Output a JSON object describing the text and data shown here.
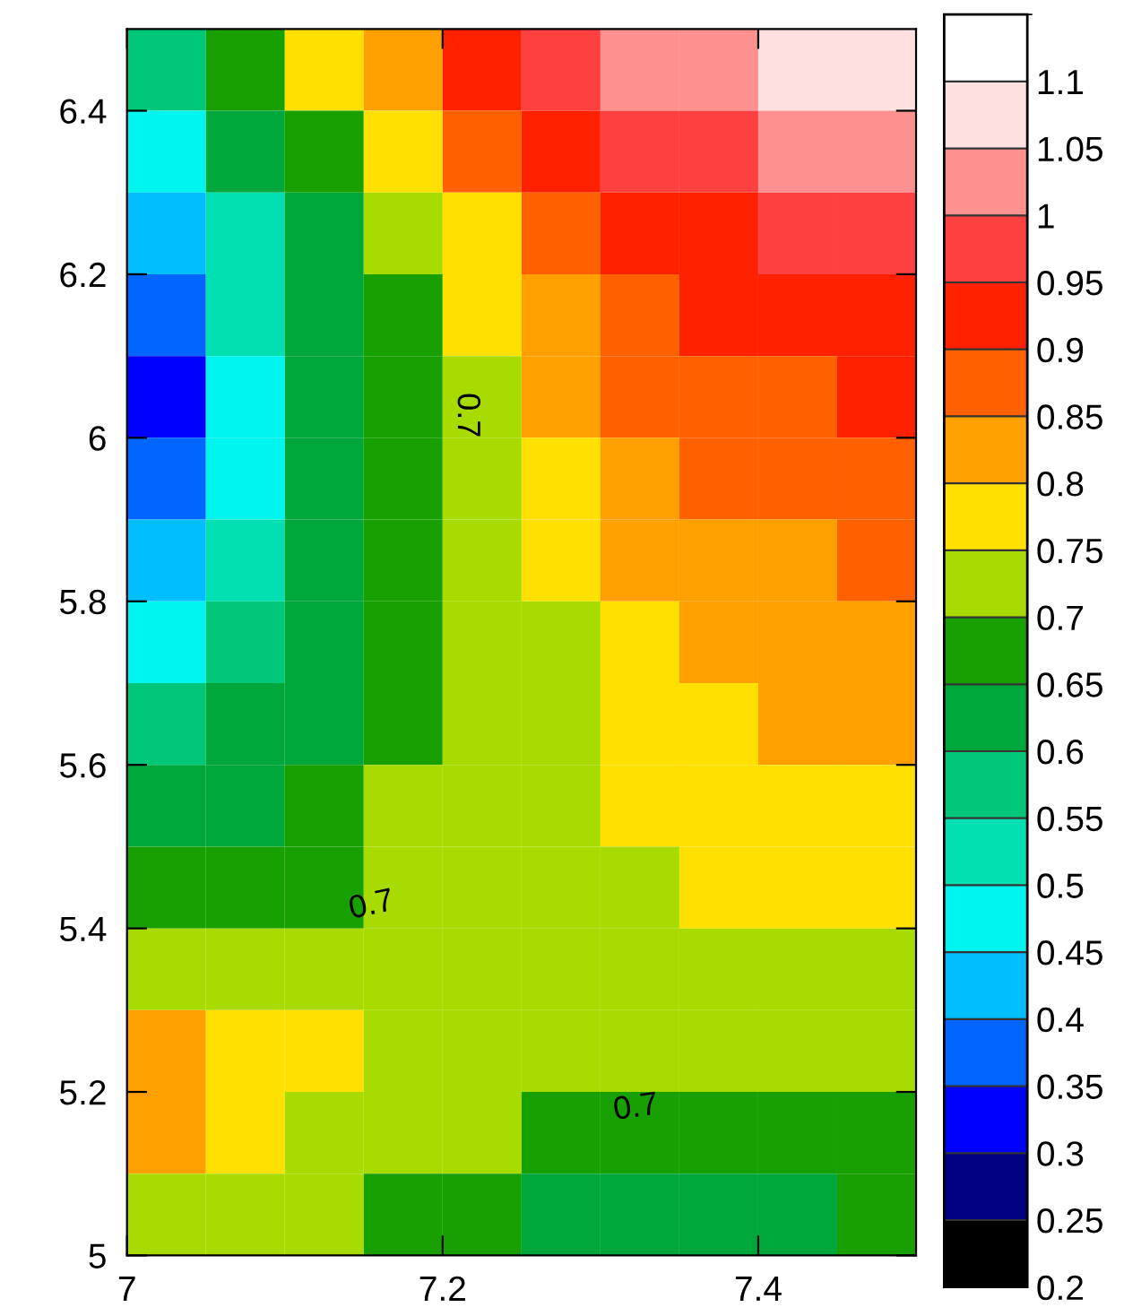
{
  "chart_data": {
    "type": "heatmap",
    "x": [
      7.025,
      7.075,
      7.125,
      7.175,
      7.225,
      7.275,
      7.325,
      7.375,
      7.425,
      7.475
    ],
    "y": [
      6.45,
      6.35,
      6.25,
      6.15,
      6.05,
      5.95,
      5.85,
      5.75,
      5.65,
      5.55,
      5.45,
      5.35,
      5.25,
      5.15,
      5.05
    ],
    "cells": [
      [
        0.59,
        0.66,
        0.75,
        0.84,
        0.93,
        0.98,
        1.01,
        1.03,
        1.05,
        1.07
      ],
      [
        0.49,
        0.6,
        0.68,
        0.77,
        0.85,
        0.91,
        0.95,
        0.98,
        1.0,
        1.02
      ],
      [
        0.4,
        0.53,
        0.64,
        0.71,
        0.79,
        0.86,
        0.9,
        0.93,
        0.96,
        0.98
      ],
      [
        0.35,
        0.5,
        0.61,
        0.69,
        0.75,
        0.82,
        0.87,
        0.9,
        0.92,
        0.94
      ],
      [
        0.33,
        0.48,
        0.6,
        0.67,
        0.74,
        0.8,
        0.85,
        0.87,
        0.89,
        0.91
      ],
      [
        0.35,
        0.49,
        0.6,
        0.67,
        0.73,
        0.78,
        0.82,
        0.85,
        0.87,
        0.88
      ],
      [
        0.42,
        0.52,
        0.61,
        0.67,
        0.72,
        0.76,
        0.8,
        0.83,
        0.84,
        0.86
      ],
      [
        0.49,
        0.56,
        0.63,
        0.68,
        0.71,
        0.74,
        0.78,
        0.8,
        0.82,
        0.83
      ],
      [
        0.55,
        0.6,
        0.64,
        0.69,
        0.71,
        0.73,
        0.76,
        0.78,
        0.8,
        0.81
      ],
      [
        0.6,
        0.63,
        0.66,
        0.7,
        0.72,
        0.73,
        0.75,
        0.76,
        0.78,
        0.79
      ],
      [
        0.67,
        0.68,
        0.69,
        0.71,
        0.72,
        0.72,
        0.73,
        0.75,
        0.76,
        0.76
      ],
      [
        0.74,
        0.74,
        0.73,
        0.72,
        0.72,
        0.72,
        0.72,
        0.73,
        0.73,
        0.74
      ],
      [
        0.81,
        0.79,
        0.76,
        0.73,
        0.72,
        0.71,
        0.71,
        0.71,
        0.71,
        0.71
      ],
      [
        0.8,
        0.77,
        0.74,
        0.72,
        0.7,
        0.68,
        0.68,
        0.68,
        0.68,
        0.68
      ],
      [
        0.74,
        0.72,
        0.7,
        0.68,
        0.65,
        0.64,
        0.63,
        0.64,
        0.64,
        0.66
      ]
    ],
    "colors": [
      "#000000",
      "#000080",
      "#0000ff",
      "#0066ff",
      "#00bfff",
      "#00f5ee",
      "#00e0b0",
      "#00c878",
      "#00a83c",
      "#18a000",
      "#a8dc00",
      "#ffe000",
      "#ffa000",
      "#ff6000",
      "#ff2000",
      "#ff4040",
      "#ff9090",
      "#ffe0e0",
      "#ffffff"
    ],
    "clim": [
      0.2,
      1.15
    ],
    "cticks": [
      0.2,
      0.25,
      0.3,
      0.35,
      0.4,
      0.45,
      0.5,
      0.55,
      0.6,
      0.65,
      0.7,
      0.75,
      0.8,
      0.85,
      0.9,
      0.95,
      1,
      1.05,
      1.1
    ],
    "xlim": [
      7,
      7.5
    ],
    "xticks": [
      7,
      7.2,
      7.4
    ],
    "ylim": [
      5,
      6.5
    ],
    "yticks": [
      5,
      5.2,
      5.4,
      5.6,
      5.8,
      6,
      6.2,
      6.4
    ],
    "annotations": [
      "0.7",
      "0.7",
      "0.7"
    ]
  }
}
